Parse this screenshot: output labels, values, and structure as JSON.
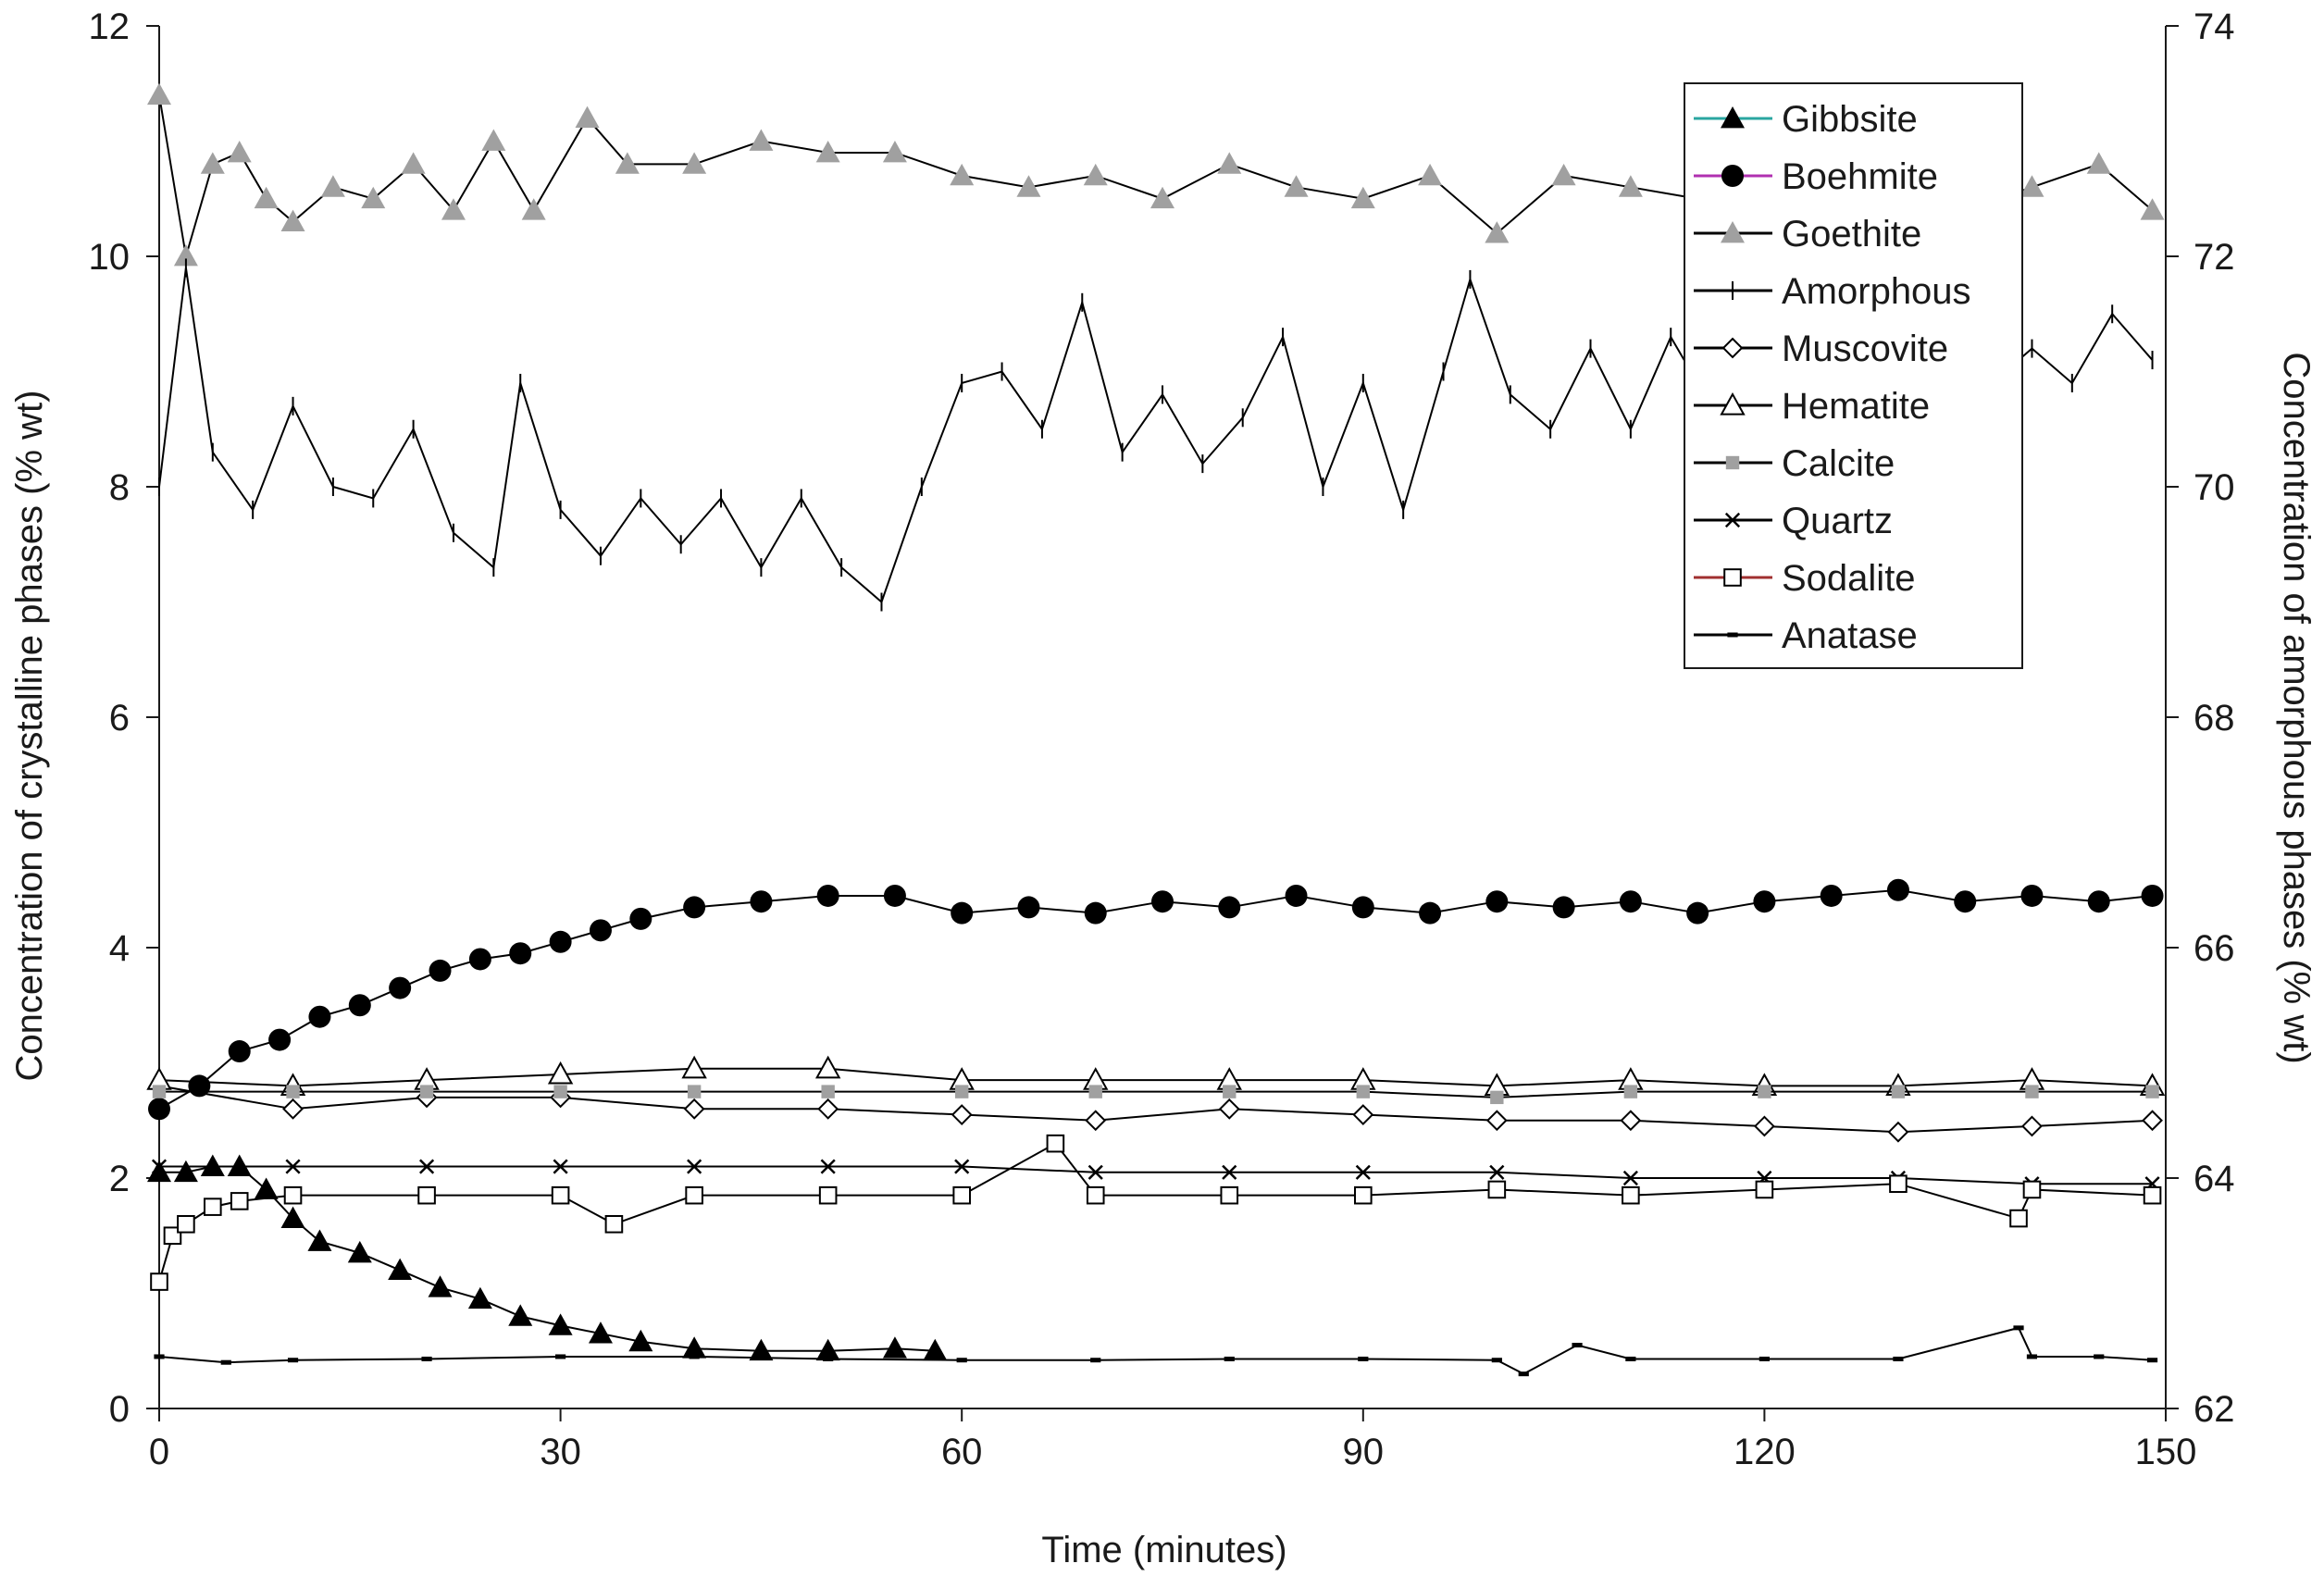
{
  "chart_data": {
    "type": "line",
    "title": "",
    "xlabel": "Time (minutes)",
    "ylabel": "Concentration of crystalline phases (% wt)",
    "y2label": "Concentration of amorphous phases (% wt)",
    "xlim": [
      0,
      150
    ],
    "ylim": [
      0,
      12
    ],
    "y2lim": [
      62,
      74
    ],
    "xticks": [
      0,
      30,
      60,
      90,
      120,
      150
    ],
    "yticks": [
      0,
      2,
      4,
      6,
      8,
      10,
      12
    ],
    "y2ticks": [
      62,
      64,
      66,
      68,
      70,
      72,
      74
    ],
    "grid": false,
    "legend_position": "top-right",
    "series": [
      {
        "name": "Gibbsite",
        "marker": "filled-triangle",
        "axis": "left",
        "x": [
          0,
          2,
          4,
          6,
          8,
          10,
          12,
          15,
          18,
          21,
          24,
          27,
          30,
          33,
          36,
          40,
          45,
          50,
          55,
          58
        ],
        "values": [
          2.05,
          2.05,
          2.1,
          2.1,
          1.9,
          1.65,
          1.45,
          1.35,
          1.2,
          1.05,
          0.95,
          0.8,
          0.72,
          0.65,
          0.58,
          0.52,
          0.5,
          0.5,
          0.52,
          0.5
        ]
      },
      {
        "name": "Boehmite",
        "marker": "filled-circle",
        "axis": "left",
        "x": [
          0,
          3,
          6,
          9,
          12,
          15,
          18,
          21,
          24,
          27,
          30,
          33,
          36,
          40,
          45,
          50,
          55,
          60,
          65,
          70,
          75,
          80,
          85,
          90,
          95,
          100,
          105,
          110,
          115,
          120,
          125,
          130,
          135,
          140,
          145,
          149
        ],
        "values": [
          2.6,
          2.8,
          3.1,
          3.2,
          3.4,
          3.5,
          3.65,
          3.8,
          3.9,
          3.95,
          4.05,
          4.15,
          4.25,
          4.35,
          4.4,
          4.45,
          4.45,
          4.3,
          4.35,
          4.3,
          4.4,
          4.35,
          4.45,
          4.35,
          4.3,
          4.4,
          4.35,
          4.4,
          4.3,
          4.4,
          4.45,
          4.5,
          4.4,
          4.45,
          4.4,
          4.45
        ]
      },
      {
        "name": "Goethite",
        "marker": "filled-triangle-gray",
        "axis": "left",
        "x": [
          0,
          2,
          4,
          6,
          8,
          10,
          13,
          16,
          19,
          22,
          25,
          28,
          32,
          35,
          40,
          45,
          50,
          55,
          60,
          65,
          70,
          75,
          80,
          85,
          90,
          95,
          100,
          105,
          110,
          115,
          120,
          125,
          130,
          135,
          140,
          145,
          149
        ],
        "values": [
          11.4,
          10.0,
          10.8,
          10.9,
          10.5,
          10.3,
          10.6,
          10.5,
          10.8,
          10.4,
          11.0,
          10.4,
          11.2,
          10.8,
          10.8,
          11.0,
          10.9,
          10.9,
          10.7,
          10.6,
          10.7,
          10.5,
          10.8,
          10.6,
          10.5,
          10.7,
          10.2,
          10.7,
          10.6,
          10.5,
          10.4,
          10.6,
          10.5,
          10.4,
          10.6,
          10.8,
          10.4
        ]
      },
      {
        "name": "Amorphous",
        "marker": "plus",
        "axis": "right",
        "x": [
          0,
          2,
          4,
          7,
          10,
          13,
          16,
          19,
          22,
          25,
          27,
          30,
          33,
          36,
          39,
          42,
          45,
          48,
          51,
          54,
          57,
          60,
          63,
          66,
          69,
          72,
          75,
          78,
          81,
          84,
          87,
          90,
          93,
          96,
          98,
          101,
          104,
          107,
          110,
          113,
          116,
          119,
          122,
          125,
          128,
          131,
          134,
          137,
          140,
          143,
          146,
          149
        ],
        "values": [
          70.0,
          71.9,
          70.3,
          69.8,
          70.7,
          70.0,
          69.9,
          70.5,
          69.6,
          69.3,
          70.9,
          69.8,
          69.4,
          69.9,
          69.5,
          69.9,
          69.3,
          69.9,
          69.3,
          69.0,
          70.0,
          70.9,
          71.0,
          70.5,
          71.6,
          70.3,
          70.8,
          70.2,
          70.6,
          71.3,
          70.0,
          70.9,
          69.8,
          71.0,
          71.8,
          70.8,
          70.5,
          71.2,
          70.5,
          71.3,
          70.7,
          71.0,
          70.8,
          71.2,
          70.4,
          71.5,
          71.0,
          70.9,
          71.2,
          70.9,
          71.5,
          71.1
        ]
      },
      {
        "name": "Muscovite",
        "marker": "open-diamond",
        "axis": "left",
        "x": [
          0,
          10,
          20,
          30,
          40,
          50,
          60,
          70,
          80,
          90,
          100,
          110,
          120,
          130,
          140,
          149
        ],
        "values": [
          2.8,
          2.6,
          2.7,
          2.7,
          2.6,
          2.6,
          2.55,
          2.5,
          2.6,
          2.55,
          2.5,
          2.5,
          2.45,
          2.4,
          2.45,
          2.5
        ]
      },
      {
        "name": "Hematite",
        "marker": "open-triangle",
        "axis": "left",
        "x": [
          0,
          10,
          20,
          30,
          40,
          50,
          60,
          70,
          80,
          90,
          100,
          110,
          120,
          130,
          140,
          149
        ],
        "values": [
          2.85,
          2.8,
          2.85,
          2.9,
          2.95,
          2.95,
          2.85,
          2.85,
          2.85,
          2.85,
          2.8,
          2.85,
          2.8,
          2.8,
          2.85,
          2.8
        ]
      },
      {
        "name": "Calcite",
        "marker": "filled-square-gray",
        "axis": "left",
        "x": [
          0,
          10,
          20,
          30,
          40,
          50,
          60,
          70,
          80,
          90,
          100,
          110,
          120,
          130,
          140,
          149
        ],
        "values": [
          2.75,
          2.75,
          2.75,
          2.75,
          2.75,
          2.75,
          2.75,
          2.75,
          2.75,
          2.75,
          2.7,
          2.75,
          2.75,
          2.75,
          2.75,
          2.75
        ]
      },
      {
        "name": "Quartz",
        "marker": "cross",
        "axis": "left",
        "x": [
          0,
          10,
          20,
          30,
          40,
          50,
          60,
          70,
          80,
          90,
          100,
          110,
          120,
          130,
          140,
          149
        ],
        "values": [
          2.1,
          2.1,
          2.1,
          2.1,
          2.1,
          2.1,
          2.1,
          2.05,
          2.05,
          2.05,
          2.05,
          2.0,
          2.0,
          2.0,
          1.95,
          1.95
        ]
      },
      {
        "name": "Sodalite",
        "marker": "open-square",
        "axis": "left",
        "x": [
          0,
          1,
          2,
          4,
          6,
          10,
          20,
          30,
          34,
          40,
          50,
          60,
          67,
          70,
          80,
          90,
          100,
          110,
          120,
          130,
          139,
          140,
          149
        ],
        "values": [
          1.1,
          1.5,
          1.6,
          1.75,
          1.8,
          1.85,
          1.85,
          1.85,
          1.6,
          1.85,
          1.85,
          1.85,
          2.3,
          1.85,
          1.85,
          1.85,
          1.9,
          1.85,
          1.9,
          1.95,
          1.65,
          1.9,
          1.85
        ]
      },
      {
        "name": "Anatase",
        "marker": "dash",
        "axis": "left",
        "x": [
          0,
          5,
          10,
          20,
          30,
          40,
          50,
          60,
          70,
          80,
          90,
          100,
          102,
          106,
          110,
          120,
          130,
          139,
          140,
          145,
          149
        ],
        "values": [
          0.45,
          0.4,
          0.42,
          0.43,
          0.45,
          0.45,
          0.43,
          0.42,
          0.42,
          0.43,
          0.43,
          0.42,
          0.3,
          0.55,
          0.43,
          0.43,
          0.43,
          0.7,
          0.45,
          0.45,
          0.42
        ]
      }
    ]
  },
  "legend": {
    "items": [
      "Gibbsite",
      "Boehmite",
      "Goethite",
      "Amorphous",
      "Muscovite",
      "Hematite",
      "Calcite",
      "Quartz",
      "Sodalite",
      "Anatase"
    ]
  },
  "colors": {
    "axis": "#1a1a1a",
    "line": "#000000",
    "gray_marker": "#a0a0a0",
    "gibbsite_legend_line": "#2aa6a0",
    "boehmite_legend_line": "#b030b0",
    "sodalite_legend_line": "#a03030"
  }
}
